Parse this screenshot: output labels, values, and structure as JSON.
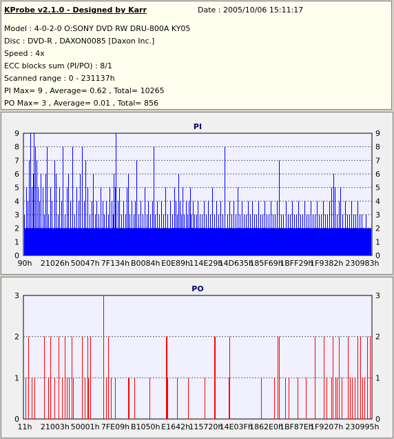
{
  "info": {
    "title": "KProbe v2.1.0 - Designed by Karr",
    "date": "Date : 2005/10/06 15:11:17",
    "model": "Model : 4-0-2-0 O:SONY    DVD RW DRU-800A  KY05",
    "disc": "Disc : DVD-R , DAXON0085 [Daxon Inc.]",
    "speed": "Speed : 4x",
    "ecc": "ECC blocks sum (PI/PO) : 8/1",
    "range": "Scanned range : 0 - 231137h",
    "pi_stats": "PI Max= 9 , Average= 0.62 , Total= 10265",
    "po_stats": "PO Max= 3 , Average= 0.01 , Total= 856"
  },
  "chart_data": [
    {
      "type": "bar",
      "title": "PI",
      "color": "#0000ff",
      "ylim": [
        0,
        9
      ],
      "yticks": [
        "0",
        "1",
        "2",
        "3",
        "4",
        "5",
        "6",
        "7",
        "8",
        "9"
      ],
      "xticks": [
        "90h",
        "21026h",
        "50047h",
        "7F134h",
        "B0084h",
        "E0E89h",
        "114E29h",
        "14D635h",
        "185F69h",
        "1BFF29h",
        "1F9382h",
        "230983h"
      ],
      "baseline": 2,
      "spikes": [
        {
          "x": 0.002,
          "v": 3
        },
        {
          "x": 0.008,
          "v": 5
        },
        {
          "x": 0.012,
          "v": 4
        },
        {
          "x": 0.016,
          "v": 7
        },
        {
          "x": 0.02,
          "v": 9
        },
        {
          "x": 0.024,
          "v": 5
        },
        {
          "x": 0.028,
          "v": 6
        },
        {
          "x": 0.03,
          "v": 9
        },
        {
          "x": 0.034,
          "v": 8
        },
        {
          "x": 0.037,
          "v": 7
        },
        {
          "x": 0.041,
          "v": 5
        },
        {
          "x": 0.046,
          "v": 4
        },
        {
          "x": 0.05,
          "v": 6
        },
        {
          "x": 0.055,
          "v": 5
        },
        {
          "x": 0.06,
          "v": 3
        },
        {
          "x": 0.064,
          "v": 6
        },
        {
          "x": 0.068,
          "v": 4
        },
        {
          "x": 0.072,
          "v": 3
        },
        {
          "x": 0.068,
          "v": 8
        },
        {
          "x": 0.078,
          "v": 5
        },
        {
          "x": 0.082,
          "v": 4
        },
        {
          "x": 0.088,
          "v": 7
        },
        {
          "x": 0.093,
          "v": 6
        },
        {
          "x": 0.098,
          "v": 3
        },
        {
          "x": 0.103,
          "v": 5
        },
        {
          "x": 0.108,
          "v": 4
        },
        {
          "x": 0.113,
          "v": 8
        },
        {
          "x": 0.118,
          "v": 3
        },
        {
          "x": 0.124,
          "v": 5
        },
        {
          "x": 0.128,
          "v": 6
        },
        {
          "x": 0.134,
          "v": 4
        },
        {
          "x": 0.14,
          "v": 8
        },
        {
          "x": 0.146,
          "v": 3
        },
        {
          "x": 0.152,
          "v": 5
        },
        {
          "x": 0.158,
          "v": 4
        },
        {
          "x": 0.163,
          "v": 6
        },
        {
          "x": 0.168,
          "v": 8
        },
        {
          "x": 0.173,
          "v": 4
        },
        {
          "x": 0.178,
          "v": 7
        },
        {
          "x": 0.184,
          "v": 5
        },
        {
          "x": 0.19,
          "v": 3
        },
        {
          "x": 0.196,
          "v": 4
        },
        {
          "x": 0.2,
          "v": 6
        },
        {
          "x": 0.205,
          "v": 3
        },
        {
          "x": 0.21,
          "v": 4
        },
        {
          "x": 0.216,
          "v": 3
        },
        {
          "x": 0.222,
          "v": 5
        },
        {
          "x": 0.228,
          "v": 4
        },
        {
          "x": 0.232,
          "v": 3
        },
        {
          "x": 0.238,
          "v": 4
        },
        {
          "x": 0.244,
          "v": 3
        },
        {
          "x": 0.248,
          "v": 5
        },
        {
          "x": 0.252,
          "v": 4
        },
        {
          "x": 0.256,
          "v": 3
        },
        {
          "x": 0.258,
          "v": 6
        },
        {
          "x": 0.262,
          "v": 5
        },
        {
          "x": 0.265,
          "v": 9
        },
        {
          "x": 0.27,
          "v": 4
        },
        {
          "x": 0.275,
          "v": 5
        },
        {
          "x": 0.28,
          "v": 3
        },
        {
          "x": 0.286,
          "v": 4
        },
        {
          "x": 0.292,
          "v": 3
        },
        {
          "x": 0.296,
          "v": 5
        },
        {
          "x": 0.3,
          "v": 6
        },
        {
          "x": 0.304,
          "v": 3
        },
        {
          "x": 0.31,
          "v": 4
        },
        {
          "x": 0.316,
          "v": 3
        },
        {
          "x": 0.32,
          "v": 4
        },
        {
          "x": 0.324,
          "v": 7
        },
        {
          "x": 0.33,
          "v": 3
        },
        {
          "x": 0.336,
          "v": 4
        },
        {
          "x": 0.342,
          "v": 3
        },
        {
          "x": 0.348,
          "v": 5
        },
        {
          "x": 0.354,
          "v": 3
        },
        {
          "x": 0.358,
          "v": 4
        },
        {
          "x": 0.364,
          "v": 3
        },
        {
          "x": 0.37,
          "v": 4
        },
        {
          "x": 0.374,
          "v": 8
        },
        {
          "x": 0.378,
          "v": 3
        },
        {
          "x": 0.384,
          "v": 4
        },
        {
          "x": 0.39,
          "v": 3
        },
        {
          "x": 0.396,
          "v": 4
        },
        {
          "x": 0.402,
          "v": 3
        },
        {
          "x": 0.408,
          "v": 5
        },
        {
          "x": 0.414,
          "v": 3
        },
        {
          "x": 0.42,
          "v": 4
        },
        {
          "x": 0.426,
          "v": 3
        },
        {
          "x": 0.432,
          "v": 5
        },
        {
          "x": 0.436,
          "v": 4
        },
        {
          "x": 0.44,
          "v": 3
        },
        {
          "x": 0.444,
          "v": 6
        },
        {
          "x": 0.448,
          "v": 4
        },
        {
          "x": 0.452,
          "v": 3
        },
        {
          "x": 0.456,
          "v": 5
        },
        {
          "x": 0.46,
          "v": 3
        },
        {
          "x": 0.466,
          "v": 4
        },
        {
          "x": 0.47,
          "v": 3
        },
        {
          "x": 0.474,
          "v": 4
        },
        {
          "x": 0.478,
          "v": 5
        },
        {
          "x": 0.48,
          "v": 3
        },
        {
          "x": 0.486,
          "v": 4
        },
        {
          "x": 0.49,
          "v": 3
        },
        {
          "x": 0.496,
          "v": 3
        },
        {
          "x": 0.5,
          "v": 4
        },
        {
          "x": 0.506,
          "v": 3
        },
        {
          "x": 0.512,
          "v": 3
        },
        {
          "x": 0.518,
          "v": 4
        },
        {
          "x": 0.524,
          "v": 3
        },
        {
          "x": 0.53,
          "v": 4
        },
        {
          "x": 0.536,
          "v": 3
        },
        {
          "x": 0.542,
          "v": 5
        },
        {
          "x": 0.548,
          "v": 3
        },
        {
          "x": 0.554,
          "v": 4
        },
        {
          "x": 0.56,
          "v": 3
        },
        {
          "x": 0.566,
          "v": 4
        },
        {
          "x": 0.572,
          "v": 3
        },
        {
          "x": 0.578,
          "v": 8
        },
        {
          "x": 0.584,
          "v": 3
        },
        {
          "x": 0.59,
          "v": 4
        },
        {
          "x": 0.596,
          "v": 3
        },
        {
          "x": 0.602,
          "v": 4
        },
        {
          "x": 0.608,
          "v": 3
        },
        {
          "x": 0.614,
          "v": 5
        },
        {
          "x": 0.62,
          "v": 3
        },
        {
          "x": 0.626,
          "v": 4
        },
        {
          "x": 0.632,
          "v": 3
        },
        {
          "x": 0.638,
          "v": 3
        },
        {
          "x": 0.644,
          "v": 4
        },
        {
          "x": 0.65,
          "v": 3
        },
        {
          "x": 0.656,
          "v": 4
        },
        {
          "x": 0.662,
          "v": 3
        },
        {
          "x": 0.668,
          "v": 3
        },
        {
          "x": 0.674,
          "v": 4
        },
        {
          "x": 0.68,
          "v": 3
        },
        {
          "x": 0.686,
          "v": 3
        },
        {
          "x": 0.692,
          "v": 4
        },
        {
          "x": 0.698,
          "v": 3
        },
        {
          "x": 0.704,
          "v": 3
        },
        {
          "x": 0.71,
          "v": 4
        },
        {
          "x": 0.716,
          "v": 3
        },
        {
          "x": 0.722,
          "v": 3
        },
        {
          "x": 0.728,
          "v": 4
        },
        {
          "x": 0.734,
          "v": 7
        },
        {
          "x": 0.74,
          "v": 3
        },
        {
          "x": 0.746,
          "v": 3
        },
        {
          "x": 0.752,
          "v": 4
        },
        {
          "x": 0.758,
          "v": 3
        },
        {
          "x": 0.764,
          "v": 3
        },
        {
          "x": 0.77,
          "v": 4
        },
        {
          "x": 0.776,
          "v": 3
        },
        {
          "x": 0.782,
          "v": 3
        },
        {
          "x": 0.788,
          "v": 4
        },
        {
          "x": 0.794,
          "v": 3
        },
        {
          "x": 0.8,
          "v": 3
        },
        {
          "x": 0.806,
          "v": 4
        },
        {
          "x": 0.812,
          "v": 3
        },
        {
          "x": 0.818,
          "v": 3
        },
        {
          "x": 0.824,
          "v": 4
        },
        {
          "x": 0.83,
          "v": 3
        },
        {
          "x": 0.836,
          "v": 3
        },
        {
          "x": 0.842,
          "v": 4
        },
        {
          "x": 0.848,
          "v": 3
        },
        {
          "x": 0.854,
          "v": 3
        },
        {
          "x": 0.86,
          "v": 4
        },
        {
          "x": 0.866,
          "v": 3
        },
        {
          "x": 0.872,
          "v": 3
        },
        {
          "x": 0.878,
          "v": 4
        },
        {
          "x": 0.884,
          "v": 5
        },
        {
          "x": 0.89,
          "v": 6
        },
        {
          "x": 0.894,
          "v": 5
        },
        {
          "x": 0.9,
          "v": 3
        },
        {
          "x": 0.906,
          "v": 4
        },
        {
          "x": 0.91,
          "v": 5
        },
        {
          "x": 0.916,
          "v": 3
        },
        {
          "x": 0.922,
          "v": 4
        },
        {
          "x": 0.928,
          "v": 3
        },
        {
          "x": 0.934,
          "v": 3
        },
        {
          "x": 0.94,
          "v": 4
        },
        {
          "x": 0.946,
          "v": 3
        },
        {
          "x": 0.952,
          "v": 3
        },
        {
          "x": 0.958,
          "v": 4
        },
        {
          "x": 0.964,
          "v": 3
        },
        {
          "x": 0.97,
          "v": 3
        },
        {
          "x": 0.976,
          "v": 2
        },
        {
          "x": 0.982,
          "v": 3
        },
        {
          "x": 0.988,
          "v": 2
        }
      ]
    },
    {
      "type": "bar",
      "title": "PO",
      "color": "#ff0000",
      "ylim": [
        0,
        3
      ],
      "yticks": [
        "0",
        "1",
        "2",
        "3"
      ],
      "xticks": [
        "11h",
        "21003h",
        "50001h",
        "7FE09h",
        "B1050h",
        "E1642h",
        "115720h",
        "14E03Fh",
        "1862E0h",
        "1BF87Eh",
        "1F9207h",
        "230995h"
      ],
      "baseline": 0,
      "spikes": [
        {
          "x": 0.005,
          "v": 1
        },
        {
          "x": 0.014,
          "v": 2
        },
        {
          "x": 0.024,
          "v": 1
        },
        {
          "x": 0.032,
          "v": 1
        },
        {
          "x": 0.06,
          "v": 2
        },
        {
          "x": 0.072,
          "v": 1
        },
        {
          "x": 0.078,
          "v": 2
        },
        {
          "x": 0.088,
          "v": 1
        },
        {
          "x": 0.1,
          "v": 2
        },
        {
          "x": 0.11,
          "v": 1
        },
        {
          "x": 0.118,
          "v": 2
        },
        {
          "x": 0.124,
          "v": 1
        },
        {
          "x": 0.13,
          "v": 1
        },
        {
          "x": 0.138,
          "v": 2
        },
        {
          "x": 0.142,
          "v": 1
        },
        {
          "x": 0.168,
          "v": 2
        },
        {
          "x": 0.176,
          "v": 1
        },
        {
          "x": 0.184,
          "v": 2
        },
        {
          "x": 0.186,
          "v": 1
        },
        {
          "x": 0.192,
          "v": 2
        },
        {
          "x": 0.23,
          "v": 3
        },
        {
          "x": 0.238,
          "v": 1
        },
        {
          "x": 0.244,
          "v": 2
        },
        {
          "x": 0.25,
          "v": 1
        },
        {
          "x": 0.262,
          "v": 1
        },
        {
          "x": 0.3,
          "v": 1
        },
        {
          "x": 0.302,
          "v": 1
        },
        {
          "x": 0.318,
          "v": 1
        },
        {
          "x": 0.362,
          "v": 1
        },
        {
          "x": 0.41,
          "v": 2
        },
        {
          "x": 0.412,
          "v": 2
        },
        {
          "x": 0.414,
          "v": 1
        },
        {
          "x": 0.44,
          "v": 1
        },
        {
          "x": 0.472,
          "v": 1
        },
        {
          "x": 0.52,
          "v": 1
        },
        {
          "x": 0.548,
          "v": 2
        },
        {
          "x": 0.55,
          "v": 2
        },
        {
          "x": 0.588,
          "v": 1
        },
        {
          "x": 0.59,
          "v": 2
        },
        {
          "x": 0.682,
          "v": 1
        },
        {
          "x": 0.72,
          "v": 1
        },
        {
          "x": 0.73,
          "v": 2
        },
        {
          "x": 0.734,
          "v": 2
        },
        {
          "x": 0.75,
          "v": 1
        },
        {
          "x": 0.76,
          "v": 1
        },
        {
          "x": 0.786,
          "v": 1
        },
        {
          "x": 0.81,
          "v": 1
        },
        {
          "x": 0.836,
          "v": 2
        },
        {
          "x": 0.862,
          "v": 2
        },
        {
          "x": 0.87,
          "v": 1
        },
        {
          "x": 0.884,
          "v": 1
        },
        {
          "x": 0.888,
          "v": 2
        },
        {
          "x": 0.896,
          "v": 1
        },
        {
          "x": 0.9,
          "v": 1
        },
        {
          "x": 0.906,
          "v": 2
        },
        {
          "x": 0.914,
          "v": 1
        },
        {
          "x": 0.93,
          "v": 2
        },
        {
          "x": 0.936,
          "v": 1
        },
        {
          "x": 0.942,
          "v": 1
        },
        {
          "x": 0.95,
          "v": 1
        },
        {
          "x": 0.958,
          "v": 2
        },
        {
          "x": 0.966,
          "v": 2
        },
        {
          "x": 0.972,
          "v": 1
        },
        {
          "x": 0.978,
          "v": 1
        },
        {
          "x": 0.986,
          "v": 2
        },
        {
          "x": 0.994,
          "v": 2
        }
      ]
    }
  ]
}
